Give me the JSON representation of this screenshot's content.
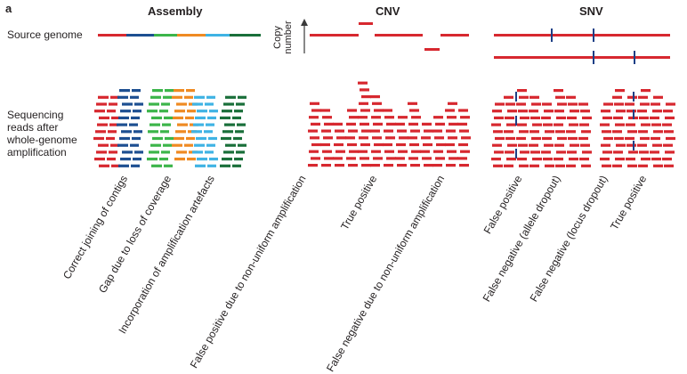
{
  "panel_label": "a",
  "sections": {
    "assembly": "Assembly",
    "cnv": "CNV",
    "snv": "SNV"
  },
  "rows": {
    "source_genome": "Source genome",
    "sequencing_reads": "Sequencing reads after whole-genome amplification"
  },
  "copy_number_axis": "Copy number",
  "column_labels": [
    "Correct joining of contigs",
    "Gap due to loss of coverage",
    "Incorporation of amplification artefacts",
    "False positive due to non-uniform amplification",
    "True positive",
    "False negative due to non-uniform amplification",
    "False positive",
    "False negative (allele dropout)",
    "False negative (locus dropout)",
    "True positive"
  ],
  "colors": {
    "read_red": "#d7282f",
    "contig_blue": "#1d4f91",
    "contig_green": "#3cb54a",
    "contig_orange": "#ef8a22",
    "contig_cyan": "#3fb3e4",
    "contig_darkgreen": "#1a6f3a",
    "variant_mark": "#1d3f86",
    "text": "#231f20"
  }
}
